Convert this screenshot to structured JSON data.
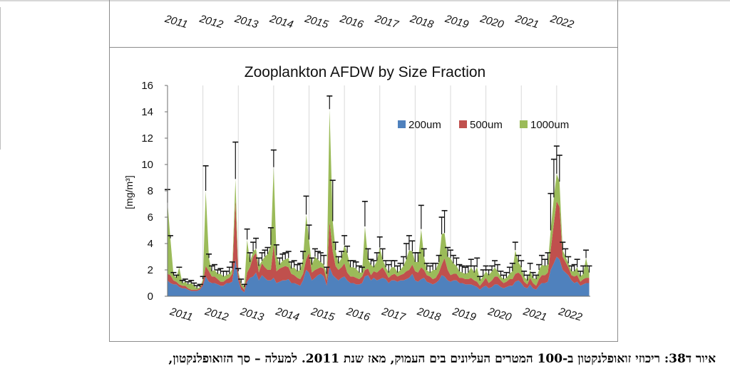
{
  "page_header": {
    "year_labels": [
      "2011",
      "2012",
      "2013",
      "2014",
      "2015",
      "2016",
      "2017",
      "2018",
      "2019",
      "2020",
      "2021",
      "2022"
    ]
  },
  "caption": "איור ד38: ריכוזי זואופלנקטון ב-100 המטרים העליונים בים העמוק, מאז שנת 2011.  למעלה – סך הזואופלנקטון,",
  "colors": {
    "s200": "#4f81bd",
    "s500": "#c0504d",
    "s1000": "#9bbb59",
    "errorbar": "#111111",
    "gridline": "#d9d9d9"
  },
  "chart_data": {
    "type": "area",
    "stacked": true,
    "title": "Zooplankton AFDW by Size Fraction",
    "ylabel": "[mg/m³]",
    "ylim": [
      0,
      16
    ],
    "yticks": [
      0,
      2,
      4,
      6,
      8,
      10,
      12,
      14,
      16
    ],
    "x_unit": "year",
    "xlim": [
      2011.0,
      2022.95
    ],
    "year_tick_labels": [
      "2011",
      "2012",
      "2013",
      "2014",
      "2015",
      "2016",
      "2017",
      "2018",
      "2019",
      "2020",
      "2021",
      "2022"
    ],
    "gridlines": "vertical, one per year",
    "legend": {
      "entries": [
        "200um",
        "500um",
        "1000um"
      ],
      "placement": "top-right"
    },
    "error_bars": "on stacked total",
    "x": [
      2011.0,
      2011.08,
      2011.17,
      2011.25,
      2011.33,
      2011.42,
      2011.5,
      2011.58,
      2011.67,
      2011.75,
      2011.83,
      2011.92,
      2012.0,
      2012.08,
      2012.17,
      2012.25,
      2012.33,
      2012.42,
      2012.5,
      2012.58,
      2012.67,
      2012.75,
      2012.83,
      2012.92,
      2013.0,
      2013.08,
      2013.17,
      2013.25,
      2013.33,
      2013.42,
      2013.5,
      2013.58,
      2013.67,
      2013.75,
      2013.83,
      2013.92,
      2014.0,
      2014.08,
      2014.17,
      2014.25,
      2014.33,
      2014.42,
      2014.5,
      2014.58,
      2014.67,
      2014.75,
      2014.83,
      2014.92,
      2015.0,
      2015.08,
      2015.17,
      2015.25,
      2015.33,
      2015.42,
      2015.5,
      2015.58,
      2015.67,
      2015.75,
      2015.83,
      2015.92,
      2016.0,
      2016.08,
      2016.17,
      2016.25,
      2016.33,
      2016.42,
      2016.5,
      2016.58,
      2016.67,
      2016.75,
      2016.83,
      2016.92,
      2017.0,
      2017.08,
      2017.17,
      2017.25,
      2017.33,
      2017.42,
      2017.5,
      2017.58,
      2017.67,
      2017.75,
      2017.83,
      2017.92,
      2018.0,
      2018.08,
      2018.17,
      2018.25,
      2018.33,
      2018.42,
      2018.5,
      2018.58,
      2018.67,
      2018.75,
      2018.83,
      2018.92,
      2019.0,
      2019.08,
      2019.17,
      2019.25,
      2019.33,
      2019.42,
      2019.5,
      2019.58,
      2019.67,
      2019.75,
      2019.83,
      2019.92,
      2020.0,
      2020.08,
      2020.17,
      2020.25,
      2020.33,
      2020.42,
      2020.5,
      2020.58,
      2020.67,
      2020.75,
      2020.83,
      2020.92,
      2021.0,
      2021.08,
      2021.17,
      2021.25,
      2021.33,
      2021.42,
      2021.5,
      2021.58,
      2021.67,
      2021.75,
      2021.83,
      2021.92,
      2022.0,
      2022.08,
      2022.17,
      2022.25,
      2022.33,
      2022.42,
      2022.5,
      2022.58,
      2022.67,
      2022.75,
      2022.83,
      2022.92
    ],
    "series": [
      {
        "name": "200um",
        "values": [
          1.2,
          1.0,
          0.9,
          0.9,
          0.7,
          0.6,
          0.6,
          0.5,
          0.4,
          0.4,
          0.4,
          0.5,
          0.8,
          1.5,
          1.1,
          1.0,
          1.0,
          0.9,
          0.8,
          0.8,
          1.0,
          1.0,
          1.1,
          2.8,
          1.2,
          0.5,
          0.3,
          1.1,
          1.4,
          1.5,
          1.8,
          1.2,
          1.6,
          1.4,
          1.2,
          1.2,
          1.4,
          1.0,
          1.1,
          1.2,
          1.2,
          1.3,
          1.0,
          1.0,
          0.9,
          0.8,
          1.2,
          2.0,
          1.8,
          1.2,
          1.4,
          1.6,
          1.7,
          1.5,
          0.8,
          2.2,
          1.6,
          1.4,
          1.2,
          1.4,
          1.5,
          1.2,
          1.0,
          1.0,
          0.9,
          0.9,
          1.0,
          1.5,
          1.6,
          1.2,
          1.4,
          1.2,
          1.3,
          1.4,
          1.3,
          1.0,
          1.2,
          1.2,
          1.1,
          1.2,
          1.2,
          1.3,
          1.4,
          1.7,
          1.2,
          1.1,
          1.3,
          1.4,
          1.1,
          1.0,
          0.9,
          1.0,
          1.2,
          1.6,
          1.5,
          1.2,
          1.1,
          1.2,
          1.2,
          1.0,
          1.0,
          0.9,
          0.9,
          0.9,
          0.8,
          0.7,
          0.5,
          0.7,
          0.8,
          0.6,
          0.7,
          0.9,
          0.9,
          0.7,
          0.6,
          0.7,
          0.8,
          0.8,
          1.1,
          1.2,
          1.0,
          0.7,
          0.6,
          0.9,
          0.6,
          0.5,
          0.8,
          1.0,
          1.0,
          1.1,
          2.0,
          2.5,
          3.0,
          2.8,
          2.0,
          1.8,
          1.6,
          1.2,
          1.0,
          1.1,
          0.8,
          0.9,
          1.0,
          1.0
        ]
      },
      {
        "name": "500um",
        "values": [
          0.5,
          0.6,
          0.3,
          0.2,
          0.2,
          0.2,
          0.2,
          0.1,
          0.1,
          0.1,
          0.1,
          0.1,
          0.3,
          0.8,
          0.8,
          0.5,
          0.5,
          0.4,
          0.3,
          0.3,
          0.3,
          0.4,
          0.6,
          4.5,
          0.5,
          0.3,
          0.2,
          0.7,
          0.8,
          1.5,
          1.5,
          0.6,
          0.9,
          0.8,
          0.8,
          0.8,
          2.5,
          0.9,
          1.0,
          1.0,
          1.1,
          0.9,
          0.7,
          0.6,
          0.5,
          0.5,
          0.5,
          0.8,
          1.5,
          0.6,
          0.6,
          0.5,
          0.5,
          0.6,
          0.4,
          3.5,
          1.8,
          0.9,
          0.8,
          0.8,
          1.0,
          0.6,
          0.5,
          0.5,
          0.5,
          0.4,
          0.5,
          0.5,
          0.5,
          0.4,
          0.5,
          0.6,
          0.7,
          0.8,
          0.5,
          0.4,
          0.4,
          0.5,
          0.4,
          0.4,
          0.5,
          0.6,
          0.6,
          0.7,
          0.7,
          0.7,
          0.9,
          0.6,
          0.5,
          0.5,
          0.4,
          0.4,
          0.6,
          0.8,
          1.4,
          0.8,
          0.5,
          0.5,
          0.5,
          0.4,
          0.4,
          0.4,
          0.4,
          0.5,
          0.4,
          0.4,
          0.3,
          0.4,
          0.6,
          0.4,
          0.5,
          0.6,
          0.6,
          0.5,
          0.4,
          0.4,
          0.5,
          0.5,
          0.6,
          0.6,
          0.6,
          0.4,
          0.3,
          0.5,
          0.4,
          0.3,
          0.5,
          0.6,
          0.6,
          0.7,
          1.5,
          3.0,
          4.2,
          4.0,
          1.0,
          0.8,
          0.6,
          0.4,
          0.5,
          0.5,
          0.3,
          0.4,
          0.4,
          0.4
        ]
      },
      {
        "name": "1000um",
        "values": [
          5.4,
          2.8,
          0.4,
          0.3,
          1.3,
          0.2,
          0.3,
          0.3,
          0.5,
          0.3,
          0.1,
          0.1,
          0.2,
          5.7,
          1.0,
          0.4,
          0.5,
          0.4,
          0.6,
          0.4,
          0.3,
          0.3,
          0.4,
          1.6,
          0.2,
          0.2,
          0.2,
          2.5,
          0.4,
          0.4,
          0.3,
          0.5,
          0.2,
          0.8,
          1.2,
          1.9,
          5.9,
          1.2,
          0.3,
          0.5,
          0.5,
          0.7,
          0.4,
          0.6,
          0.5,
          0.7,
          1.1,
          3.4,
          1.0,
          0.6,
          1.0,
          0.7,
          0.4,
          0.3,
          0.5,
          8.5,
          2.3,
          1.2,
          0.5,
          0.7,
          1.4,
          1.5,
          0.7,
          0.7,
          0.7,
          0.5,
          0.3,
          3.3,
          0.7,
          0.8,
          0.3,
          0.9,
          1.7,
          0.6,
          0.4,
          0.4,
          0.6,
          0.5,
          0.3,
          0.4,
          0.6,
          0.9,
          1.5,
          1.0,
          0.7,
          0.8,
          2.9,
          1.0,
          0.4,
          0.3,
          0.7,
          0.6,
          0.8,
          2.3,
          1.9,
          1.0,
          1.3,
          0.8,
          0.6,
          0.5,
          0.4,
          0.4,
          0.5,
          0.8,
          0.6,
          1.1,
          0.4,
          0.4,
          0.5,
          0.6,
          0.7,
          0.7,
          0.4,
          0.3,
          0.3,
          0.3,
          0.4,
          0.6,
          1.8,
          0.8,
          0.6,
          0.4,
          0.3,
          0.6,
          0.4,
          0.5,
          0.7,
          0.8,
          0.7,
          0.6,
          1.5,
          2.0,
          2.1,
          1.9,
          0.5,
          0.4,
          0.3,
          0.3,
          0.4,
          0.6,
          0.4,
          0.4,
          1.5,
          0.4
        ]
      }
    ],
    "error_bar_tops": [
      8.1,
      4.6,
      1.8,
      1.6,
      2.2,
      1.2,
      1.3,
      1.1,
      1.2,
      1.0,
      0.8,
      0.9,
      1.5,
      9.9,
      3.2,
      2.3,
      2.4,
      2.0,
      2.1,
      1.9,
      1.9,
      2.2,
      2.6,
      11.7,
      2.1,
      1.3,
      0.9,
      5.1,
      3.3,
      4.1,
      4.4,
      2.9,
      3.3,
      3.5,
      3.7,
      5.2,
      11.1,
      3.9,
      2.9,
      3.2,
      3.3,
      3.4,
      2.6,
      2.7,
      2.4,
      2.5,
      3.4,
      7.6,
      5.4,
      2.9,
      3.6,
      3.4,
      3.3,
      3.1,
      2.2,
      15.2,
      8.8,
      4.1,
      3.0,
      3.4,
      4.6,
      3.8,
      2.7,
      2.7,
      2.6,
      2.3,
      2.2,
      7.2,
      3.6,
      2.8,
      2.7,
      3.3,
      4.5,
      3.6,
      2.7,
      2.4,
      2.7,
      2.7,
      2.3,
      2.5,
      3.0,
      4.0,
      4.6,
      4.2,
      3.3,
      3.3,
      6.9,
      3.6,
      2.5,
      2.3,
      2.5,
      2.5,
      3.1,
      6.0,
      6.5,
      3.7,
      3.5,
      3.1,
      2.9,
      2.4,
      2.3,
      2.2,
      2.3,
      2.8,
      2.3,
      2.9,
      1.5,
      2.0,
      2.3,
      2.0,
      2.3,
      2.7,
      2.4,
      1.9,
      1.6,
      1.8,
      2.2,
      2.5,
      4.1,
      3.1,
      2.7,
      1.9,
      1.6,
      2.5,
      1.8,
      1.6,
      2.4,
      3.1,
      2.8,
      3.3,
      7.8,
      10.4,
      11.4,
      10.7,
      4.1,
      3.6,
      3.0,
      2.3,
      2.4,
      2.8,
      1.9,
      2.3,
      3.5,
      2.3
    ]
  }
}
